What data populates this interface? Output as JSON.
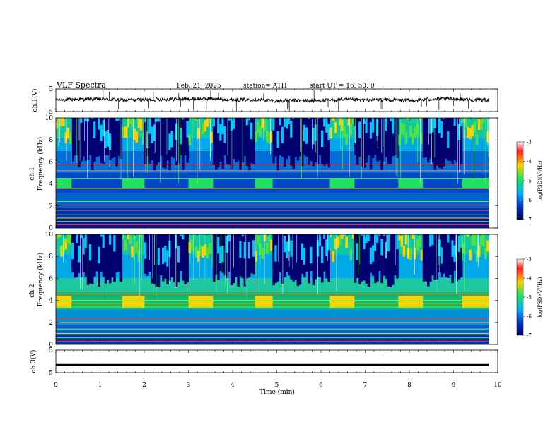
{
  "header": {
    "title": "VLF  Spectra",
    "date": "Feb. 21, 2025",
    "station": "station= ATH",
    "start": "start  UT  =   16: 50: 0"
  },
  "colorbar": {
    "label": "log(PSD)(V²/Hz)",
    "ticks": [
      "-3",
      "-4",
      "-5",
      "-6",
      "-7"
    ],
    "colors": [
      "#ffffff",
      "#ff2020",
      "#ffd000",
      "#20e060",
      "#00b0ff",
      "#0030c0",
      "#000060"
    ]
  },
  "chart_data": [
    {
      "type": "line",
      "panel": "ch1-waveform",
      "ylabel": "ch.1(V)",
      "ylim": [
        -5,
        5
      ],
      "yticks": [
        "5",
        "-5"
      ],
      "x": [
        0,
        0.5,
        1,
        1.5,
        2,
        2.5,
        3,
        3.5,
        4,
        4.5,
        5,
        5.5,
        6,
        6.5,
        7,
        7.5,
        8,
        8.5,
        9,
        9.5,
        9.8
      ],
      "values": [
        0.2,
        0.4,
        0.6,
        0.1,
        0.2,
        0.5,
        0.5,
        0.7,
        0.2,
        0.4,
        -0.3,
        -0.1,
        -0.2,
        0.3,
        0.1,
        0.3,
        -0.2,
        0.5,
        0.6,
        0.1,
        0.1
      ]
    },
    {
      "type": "heatmap",
      "panel": "ch1-spectrogram",
      "ylabel": "ch.1",
      "ylabel2": "Frequency  (kHz)",
      "ylim": [
        0,
        10
      ],
      "yticks": [
        "0",
        "2",
        "4",
        "6",
        "8",
        "10"
      ],
      "burst_segments_min": [
        [
          0.35,
          1.5
        ],
        [
          2.0,
          3.0
        ],
        [
          3.55,
          4.5
        ],
        [
          4.9,
          6.2
        ],
        [
          6.75,
          7.75
        ],
        [
          8.3,
          9.2
        ]
      ],
      "lines_khz": [
        0.3,
        0.6,
        0.9,
        1.2,
        1.6,
        2.1,
        2.4,
        3.6,
        4.5,
        5.2,
        5.8
      ]
    },
    {
      "type": "heatmap",
      "panel": "ch2-spectrogram",
      "ylabel": "ch.2",
      "ylabel2": "Frequency  (kHz)",
      "ylim": [
        0,
        10
      ],
      "yticks": [
        "0",
        "2",
        "4",
        "6",
        "8",
        "10"
      ],
      "burst_segments_min": [
        [
          0.35,
          1.5
        ],
        [
          2.0,
          3.0
        ],
        [
          3.55,
          4.5
        ],
        [
          4.9,
          6.2
        ],
        [
          6.75,
          7.75
        ],
        [
          8.3,
          9.2
        ]
      ],
      "lines_khz": [
        0.3,
        0.6,
        1.0,
        1.4,
        2.0,
        2.4,
        3.4,
        3.7,
        4.0,
        4.6
      ]
    },
    {
      "type": "line",
      "panel": "ch3-waveform",
      "ylabel": "ch.3(V)",
      "ylim": [
        -5,
        5
      ],
      "yticks": [
        "5",
        "-5"
      ],
      "x": [
        0,
        9.8
      ],
      "values": [
        -1.5,
        -1.5
      ]
    }
  ],
  "xaxis": {
    "label": "Time  (min)",
    "range": [
      0,
      10
    ],
    "ticks": [
      "0",
      "1",
      "2",
      "3",
      "4",
      "5",
      "6",
      "7",
      "8",
      "9",
      "10"
    ]
  }
}
